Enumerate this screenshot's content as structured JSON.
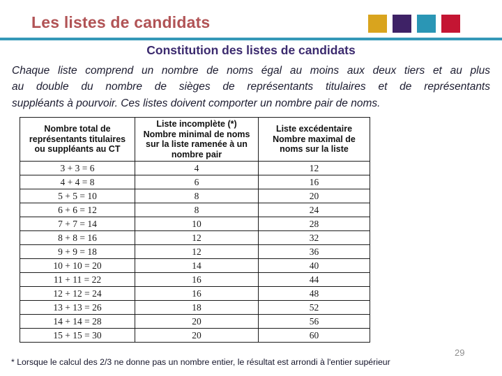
{
  "colors": {
    "title": "#b15355",
    "subtitle": "#3b2a6e",
    "divider": "#3598b8",
    "squares": [
      "#d9a41e",
      "#3e2266",
      "#2a96b5",
      "#c41533"
    ]
  },
  "slide": {
    "title": "Les listes de candidats",
    "subtitle": "Constitution des listes de candidats",
    "body_lines": [
      "Chaque liste comprend un nombre de noms égal au moins aux deux tiers et au plus",
      "au double du nombre de sièges de représentants titulaires et de représentants",
      "suppléants à pourvoir. Ces listes doivent comporter un nombre pair de noms."
    ],
    "footnote": "* Lorsque le calcul des 2/3 ne donne pas un nombre entier, le résultat est arrondi à l'entier supérieur",
    "page_number": "29"
  },
  "table": {
    "headers": [
      {
        "lines": [
          "Nombre total de représentants titulaires ou suppléants au CT"
        ]
      },
      {
        "lines": [
          "Liste incomplète (*)",
          "Nombre minimal de noms sur la liste ramenée à un nombre pair"
        ]
      },
      {
        "lines": [
          "Liste excédentaire",
          "Nombre maximal de noms sur la liste"
        ]
      }
    ],
    "rows": [
      [
        "3 + 3 = 6",
        "4",
        "12"
      ],
      [
        "4 + 4 = 8",
        "6",
        "16"
      ],
      [
        "5 + 5 = 10",
        "8",
        "20"
      ],
      [
        "6 + 6 = 12",
        "8",
        "24"
      ],
      [
        "7 + 7 = 14",
        "10",
        "28"
      ],
      [
        "8 + 8 = 16",
        "12",
        "32"
      ],
      [
        "9 + 9 = 18",
        "12",
        "36"
      ],
      [
        "10 + 10 = 20",
        "14",
        "40"
      ],
      [
        "11 + 11 = 22",
        "16",
        "44"
      ],
      [
        "12 + 12 = 24",
        "16",
        "48"
      ],
      [
        "13 + 13 = 26",
        "18",
        "52"
      ],
      [
        "14 + 14 = 28",
        "20",
        "56"
      ],
      [
        "15 + 15 = 30",
        "20",
        "60"
      ]
    ]
  }
}
